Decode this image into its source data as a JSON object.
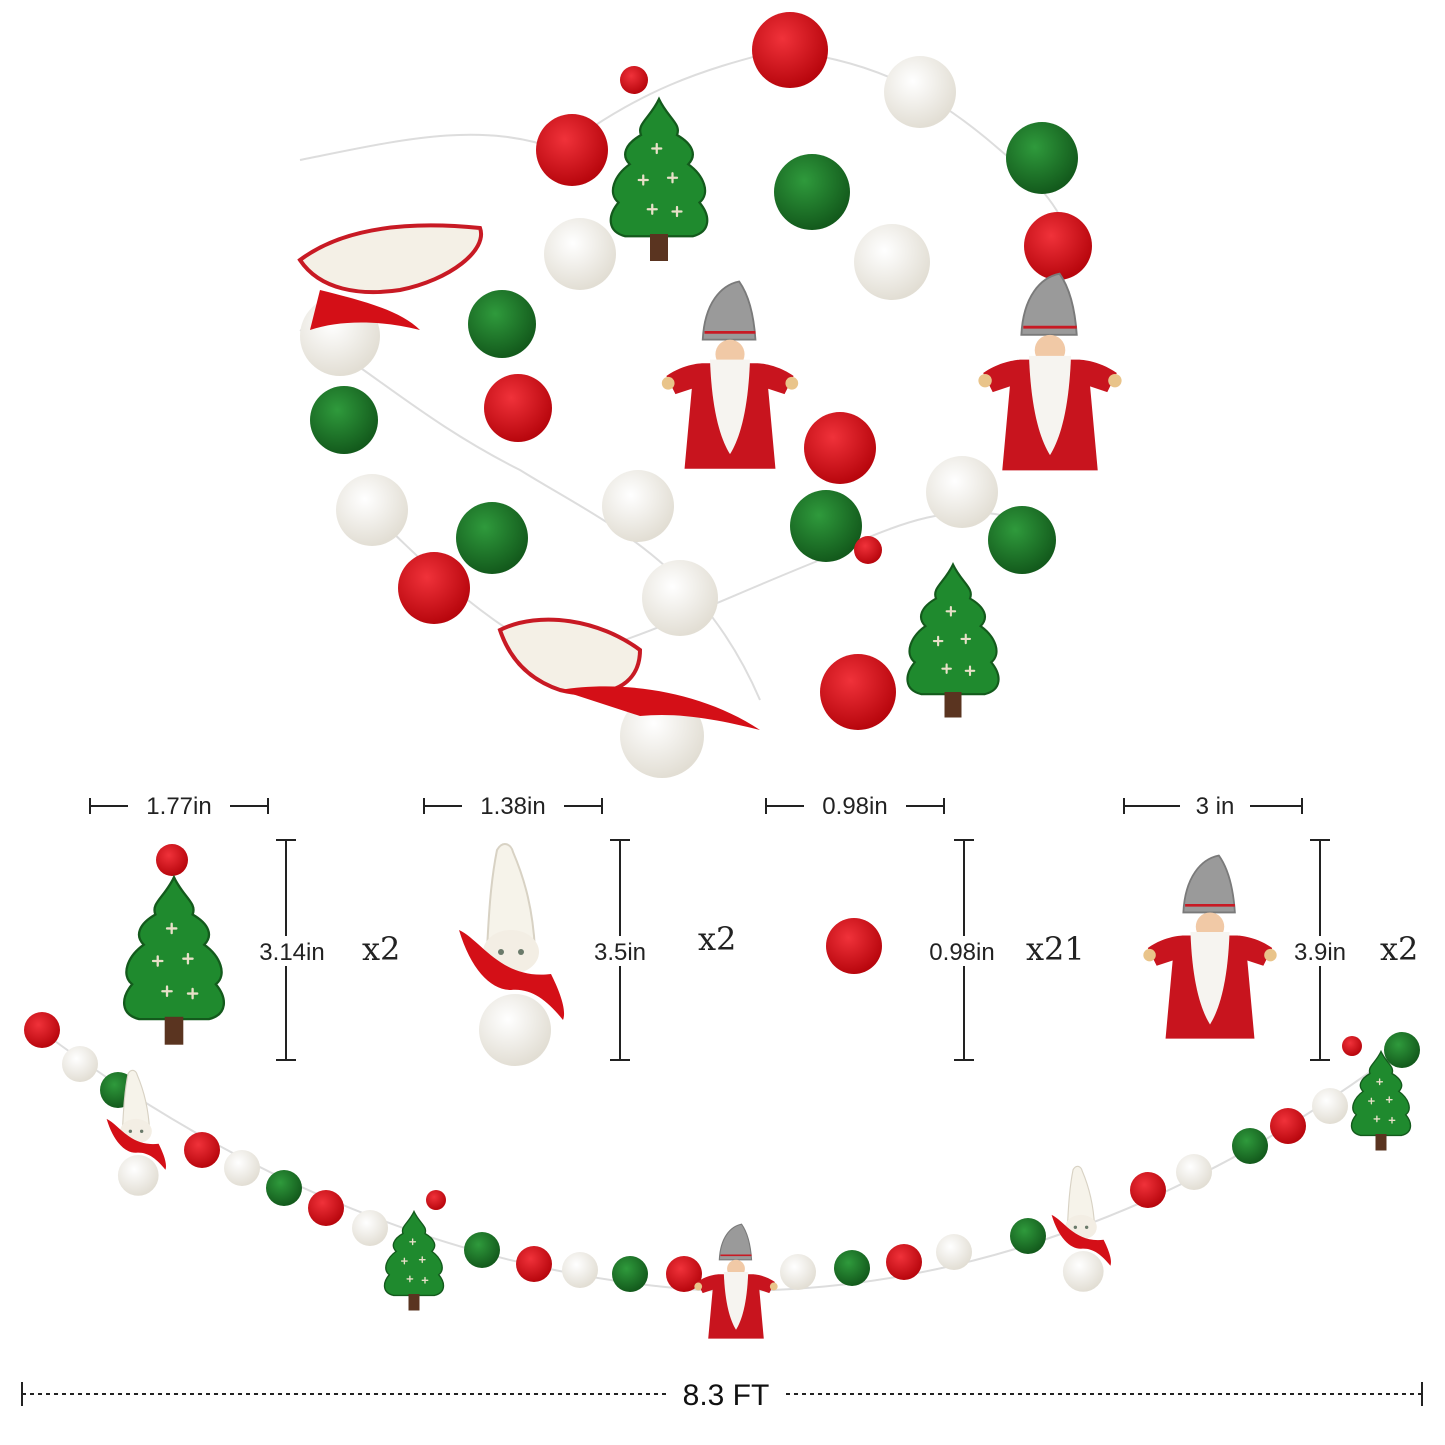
{
  "product": {
    "items": [
      {
        "name": "tree",
        "width": "1.77in",
        "height": "3.14in",
        "qty": "x2"
      },
      {
        "name": "gnome",
        "width": "1.38in",
        "height": "3.5in",
        "qty": "x2"
      },
      {
        "name": "ball",
        "width": "0.98in",
        "height": "0.98in",
        "qty": "x21"
      },
      {
        "name": "santa",
        "width": "3 in",
        "height": "3.9in",
        "qty": "x2"
      }
    ],
    "total_length": "8.3 FT"
  },
  "colors": {
    "red": "#d40f17",
    "green": "#1f7a2a",
    "white": "#f4f2ec",
    "gray": "#9a9a9a",
    "brown": "#5a3420",
    "line": "#222222"
  }
}
